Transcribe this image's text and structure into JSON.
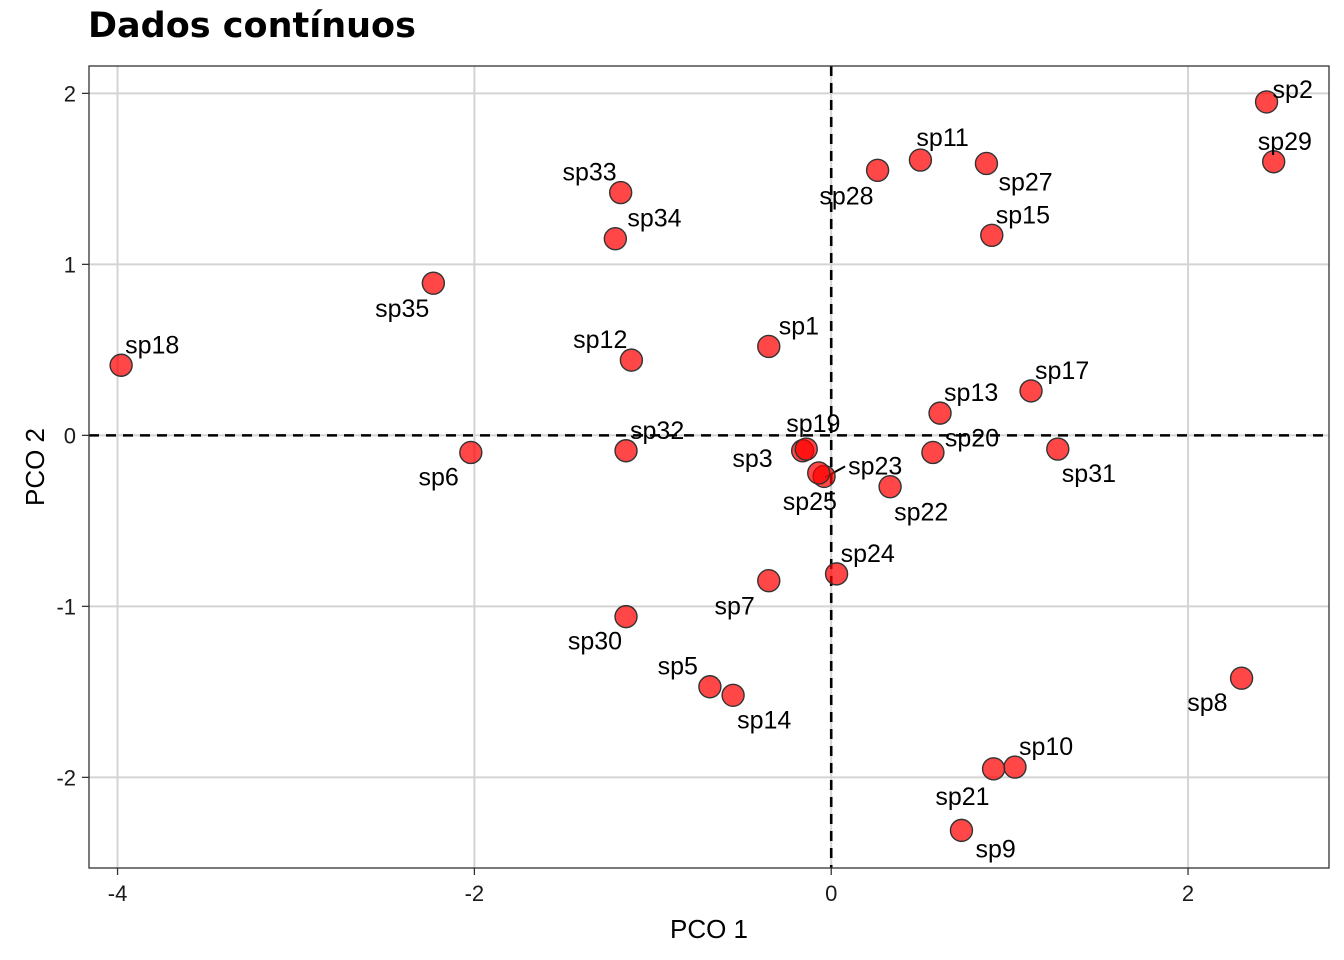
{
  "chart_data": {
    "type": "scatter",
    "title": "Dados contínuos",
    "xlabel": "PCO 1",
    "ylabel": "PCO 2",
    "xlim": [
      -4.16,
      2.79
    ],
    "ylim": [
      -2.53,
      2.16
    ],
    "xticks": [
      -4,
      -2,
      0,
      2
    ],
    "yticks": [
      -2,
      -1,
      0,
      1,
      2
    ],
    "grid": true,
    "reference_lines": [
      {
        "axis": "x",
        "value": 0,
        "style": "dashed"
      },
      {
        "axis": "y",
        "value": 0,
        "style": "dashed"
      }
    ],
    "marker_color": "#ff0000",
    "marker_edge": "#333333",
    "points": [
      {
        "label": "sp1",
        "x": -0.35,
        "y": 0.52
      },
      {
        "label": "sp2",
        "x": 2.44,
        "y": 1.95
      },
      {
        "label": "sp3",
        "x": -0.16,
        "y": -0.09
      },
      {
        "label": "sp5",
        "x": -0.68,
        "y": -1.47
      },
      {
        "label": "sp6",
        "x": -2.02,
        "y": -0.1
      },
      {
        "label": "sp7",
        "x": -0.35,
        "y": -0.85
      },
      {
        "label": "sp8",
        "x": 2.3,
        "y": -1.42
      },
      {
        "label": "sp9",
        "x": 0.73,
        "y": -2.31
      },
      {
        "label": "sp10",
        "x": 1.03,
        "y": -1.94
      },
      {
        "label": "sp11",
        "x": 0.5,
        "y": 1.61
      },
      {
        "label": "sp12",
        "x": -1.12,
        "y": 0.44
      },
      {
        "label": "sp13",
        "x": 0.61,
        "y": 0.13
      },
      {
        "label": "sp14",
        "x": -0.55,
        "y": -1.52
      },
      {
        "label": "sp15",
        "x": 0.9,
        "y": 1.17
      },
      {
        "label": "sp17",
        "x": 1.12,
        "y": 0.26
      },
      {
        "label": "sp18",
        "x": -3.98,
        "y": 0.41
      },
      {
        "label": "sp19",
        "x": -0.14,
        "y": -0.08
      },
      {
        "label": "sp20",
        "x": 0.57,
        "y": -0.1
      },
      {
        "label": "sp21",
        "x": 0.91,
        "y": -1.95
      },
      {
        "label": "sp22",
        "x": 0.33,
        "y": -0.3
      },
      {
        "label": "sp23",
        "x": -0.04,
        "y": -0.24
      },
      {
        "label": "sp24",
        "x": 0.03,
        "y": -0.81
      },
      {
        "label": "sp25",
        "x": -0.07,
        "y": -0.22
      },
      {
        "label": "sp27",
        "x": 0.87,
        "y": 1.59
      },
      {
        "label": "sp28",
        "x": 0.26,
        "y": 1.55
      },
      {
        "label": "sp29",
        "x": 2.48,
        "y": 1.6
      },
      {
        "label": "sp30",
        "x": -1.15,
        "y": -1.06
      },
      {
        "label": "sp31",
        "x": 1.27,
        "y": -0.08
      },
      {
        "label": "sp32",
        "x": -1.15,
        "y": -0.09
      },
      {
        "label": "sp33",
        "x": -1.18,
        "y": 1.42
      },
      {
        "label": "sp34",
        "x": -1.21,
        "y": 1.15
      },
      {
        "label": "sp35",
        "x": -2.23,
        "y": 0.89
      }
    ]
  }
}
